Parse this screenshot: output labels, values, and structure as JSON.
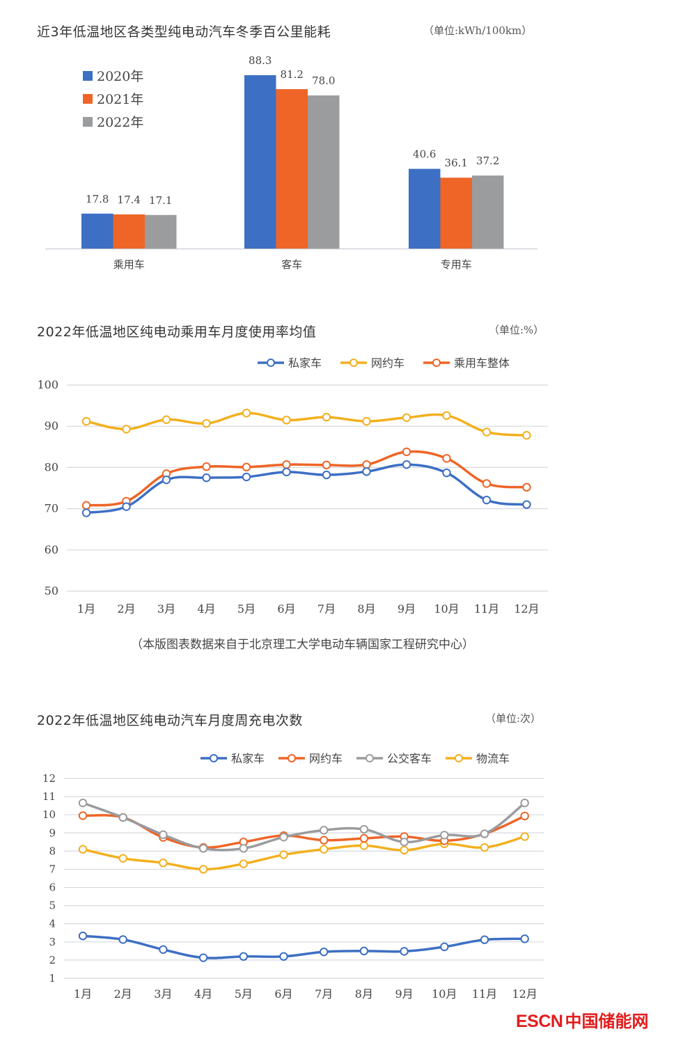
{
  "chart_data": [
    {
      "type": "bar",
      "title": "近3年低温地区各类型纯电动汽车冬季百公里能耗",
      "unit": "（单位:kWh/100km）",
      "categories": [
        "乘用车",
        "客车",
        "专用车"
      ],
      "series": [
        {
          "name": "2020年",
          "color": "#3d6fc4",
          "values": [
            17.8,
            88.3,
            40.6
          ]
        },
        {
          "name": "2021年",
          "color": "#ee6527",
          "values": [
            17.4,
            81.2,
            36.1
          ]
        },
        {
          "name": "2022年",
          "color": "#9a9c9e",
          "values": [
            17.1,
            78.0,
            37.2
          ]
        }
      ],
      "data_labels": [
        [
          "17.8",
          "88.3",
          "40.6"
        ],
        [
          "17.4",
          "81.2",
          "36.1"
        ],
        [
          "17.1",
          "78.0",
          "37.2"
        ]
      ],
      "ylim": [
        0,
        95
      ],
      "legend": "top-left",
      "grid": false
    },
    {
      "type": "line",
      "title": "2022年低温地区纯电动乘用车月度使用率均值",
      "unit": "（单位:%）",
      "categories": [
        "1月",
        "2月",
        "3月",
        "4月",
        "5月",
        "6月",
        "7月",
        "8月",
        "9月",
        "10月",
        "11月",
        "12月"
      ],
      "series": [
        {
          "name": "私家车",
          "color": "#3d6fc4",
          "values": [
            69.0,
            70.5,
            77.0,
            77.5,
            77.7,
            78.9,
            78.2,
            79.0,
            80.7,
            78.7,
            72.1,
            71.0
          ]
        },
        {
          "name": "网约车",
          "color": "#f2b01e",
          "values": [
            91.2,
            89.3,
            91.6,
            90.7,
            93.2,
            91.5,
            92.2,
            91.2,
            92.1,
            92.6,
            88.6,
            87.8
          ]
        },
        {
          "name": "乘用车整体",
          "color": "#ee6527",
          "values": [
            70.8,
            71.8,
            78.5,
            80.2,
            80.1,
            80.7,
            80.6,
            80.7,
            83.8,
            82.2,
            76.1,
            75.2
          ]
        }
      ],
      "yticks": [
        50,
        60,
        70,
        80,
        90,
        100
      ],
      "ylim": [
        50,
        100
      ],
      "legend": "top-right",
      "grid": true
    },
    {
      "type": "line",
      "title": "2022年低温地区纯电动汽车月度周充电次数",
      "unit": "（单位:次）",
      "categories": [
        "1月",
        "2月",
        "3月",
        "4月",
        "5月",
        "6月",
        "7月",
        "8月",
        "9月",
        "10月",
        "11月",
        "12月"
      ],
      "series": [
        {
          "name": "私家车",
          "color": "#3d6fc4",
          "values": [
            3.33,
            3.13,
            2.58,
            2.13,
            2.2,
            2.2,
            2.45,
            2.5,
            2.48,
            2.73,
            3.12,
            3.17
          ]
        },
        {
          "name": "网约车",
          "color": "#ee6527",
          "values": [
            9.95,
            9.85,
            8.75,
            8.2,
            8.5,
            8.85,
            8.6,
            8.7,
            8.8,
            8.57,
            8.95,
            9.93
          ]
        },
        {
          "name": "公交客车",
          "color": "#9a9c9e",
          "values": [
            10.65,
            9.85,
            8.9,
            8.15,
            8.15,
            8.77,
            9.15,
            9.2,
            8.5,
            8.88,
            8.95,
            10.65
          ]
        },
        {
          "name": "物流车",
          "color": "#f2b01e",
          "values": [
            8.1,
            7.6,
            7.35,
            7.0,
            7.3,
            7.8,
            8.1,
            8.3,
            8.05,
            8.4,
            8.2,
            8.8
          ]
        }
      ],
      "yticks": [
        1,
        2,
        3,
        4,
        5,
        6,
        7,
        8,
        9,
        10,
        11,
        12
      ],
      "ylim": [
        1,
        12
      ],
      "legend": "top-right",
      "grid": true
    }
  ],
  "source_note": "（本版图表数据来自于北京理工大学电动车辆国家工程研究中心）",
  "watermark": {
    "brand": "ESCN",
    "name": "中国储能网",
    "color": "#e21c1c"
  }
}
